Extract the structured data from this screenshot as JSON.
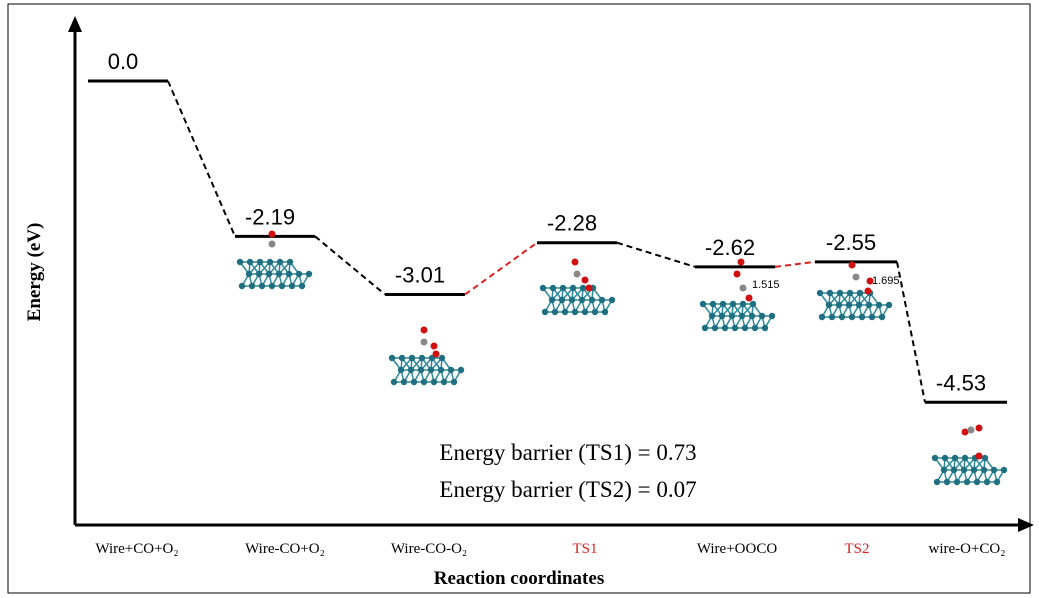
{
  "chart_data": {
    "type": "energy-profile",
    "x_label": "Reaction coordinates",
    "y_label": "Energy (eV)",
    "categories": [
      "Wire+CO+O₂",
      "Wire-CO+O₂",
      "Wire-CO-O₂",
      "TS1",
      "Wire+OOCO",
      "TS2",
      "wire-O+CO₂"
    ],
    "category_colors": [
      "#000000",
      "#000000",
      "#000000",
      "#e02020",
      "#000000",
      "#e02020",
      "#000000"
    ],
    "values": [
      0.0,
      -2.19,
      -3.01,
      -2.28,
      -2.62,
      -2.55,
      -4.53
    ],
    "value_labels": [
      "0.0",
      "-2.19",
      "-3.01",
      "-2.28",
      "-2.62",
      "-2.55",
      "-4.53"
    ],
    "connector_colors": [
      "#000000",
      "#000000",
      "#e02020",
      "#000000",
      "#e02020",
      "#000000"
    ],
    "ylim": [
      -6.26,
      0.86
    ],
    "annotations": [
      "Energy barrier (TS1) = 0.73",
      "Energy barrier (TS2) = 0.07"
    ],
    "bond_labels": [
      "1.515",
      "1.695"
    ]
  }
}
